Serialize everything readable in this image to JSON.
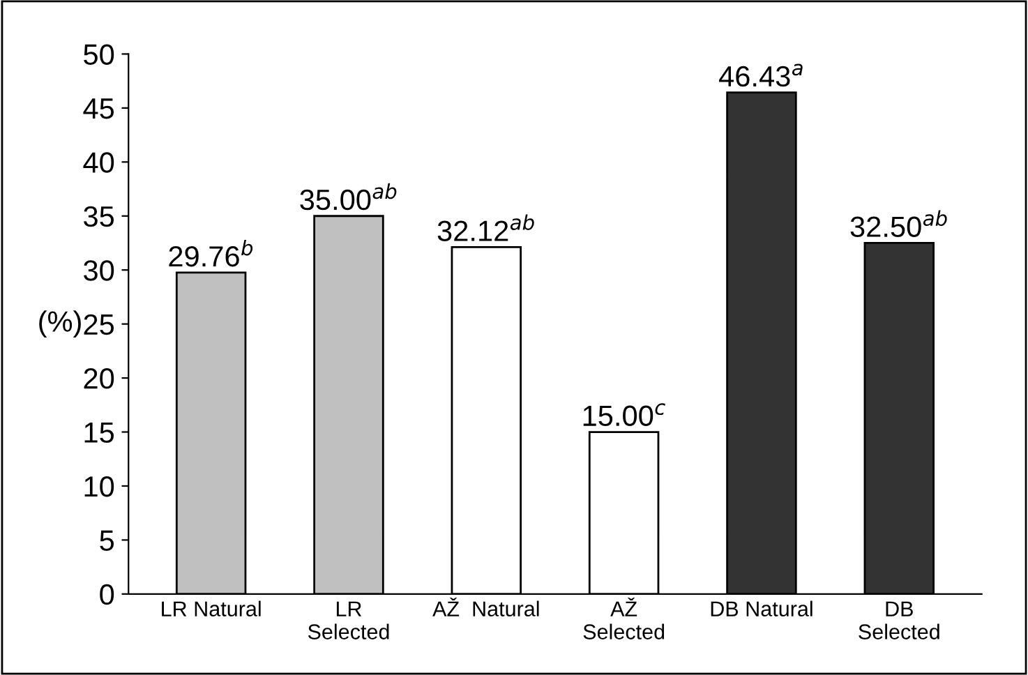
{
  "chart_data": {
    "type": "bar",
    "ylabel": "(%)",
    "categories": [
      "LR Natural",
      "LR\nSelected",
      "AŽ  Natural",
      "AŽ\nSelected",
      "DB Natural",
      "DB\nSelected"
    ],
    "values": [
      29.76,
      35.0,
      32.12,
      15.0,
      46.43,
      32.5
    ],
    "colors": [
      "#c0c0c0",
      "#c0c0c0",
      "#ffffff",
      "#ffffff",
      "#333333",
      "#333333"
    ],
    "value_labels": [
      "29.76$^{b}$",
      "35.00$^{ab}$",
      "32.12$^{ab}$",
      "15.00$^{c}$",
      "46.43$^{a}$",
      "32.50$^{ab}$"
    ],
    "ylim": [
      0,
      50
    ],
    "yticks": [
      0,
      5,
      10,
      15,
      20,
      25,
      30,
      35,
      40,
      45,
      50
    ],
    "grid": false,
    "legend": false
  }
}
